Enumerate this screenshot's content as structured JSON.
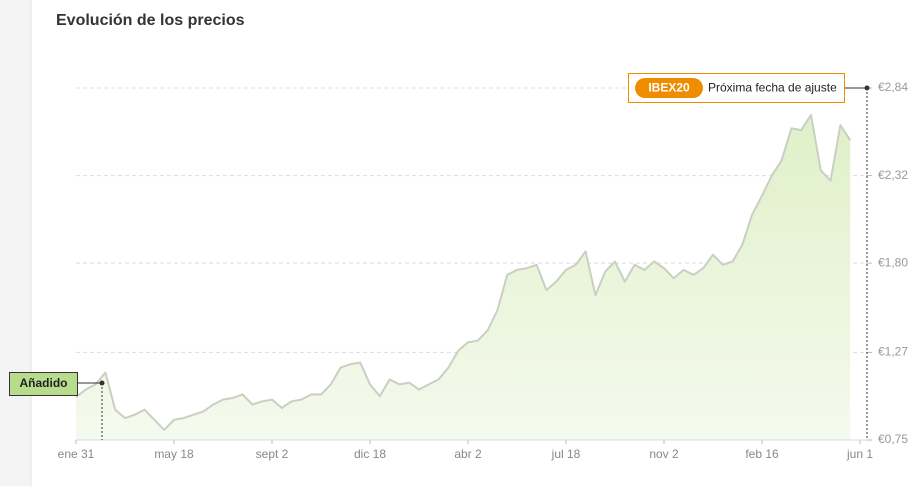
{
  "chart_data": {
    "type": "line",
    "title": "Evolución de los precios",
    "categories": [
      "ene 31",
      null,
      null,
      null,
      null,
      null,
      null,
      null,
      null,
      null,
      "may 18",
      null,
      null,
      null,
      null,
      null,
      null,
      null,
      null,
      null,
      "sept 2",
      null,
      null,
      null,
      null,
      null,
      null,
      null,
      null,
      null,
      "dic 18",
      null,
      null,
      null,
      null,
      null,
      null,
      null,
      null,
      null,
      "abr 2",
      null,
      null,
      null,
      null,
      null,
      null,
      null,
      null,
      null,
      "jul 18",
      null,
      null,
      null,
      null,
      null,
      null,
      null,
      null,
      null,
      "nov 2",
      null,
      null,
      null,
      null,
      null,
      null,
      null,
      null,
      null,
      "feb 16",
      null,
      null,
      null,
      null,
      null,
      null,
      null,
      null,
      null,
      "jun 1"
    ],
    "series": [
      {
        "name": "IBEX20",
        "color": "#c9cfc2",
        "values": [
          1.005,
          1.05,
          1.08,
          1.15,
          0.93,
          0.88,
          0.9,
          0.93,
          0.87,
          0.81,
          0.87,
          0.88,
          0.9,
          0.92,
          0.96,
          0.99,
          1.0,
          1.02,
          0.96,
          0.98,
          0.99,
          0.94,
          0.98,
          0.99,
          1.02,
          1.02,
          1.08,
          1.18,
          1.2,
          1.21,
          1.08,
          1.01,
          1.11,
          1.08,
          1.09,
          1.05,
          1.08,
          1.11,
          1.18,
          1.28,
          1.33,
          1.34,
          1.4,
          1.52,
          1.73,
          1.76,
          1.77,
          1.79,
          1.64,
          1.69,
          1.76,
          1.79,
          1.87,
          1.61,
          1.75,
          1.81,
          1.69,
          1.79,
          1.76,
          1.81,
          1.77,
          1.71,
          1.76,
          1.73,
          1.77,
          1.85,
          1.79,
          1.81,
          1.91,
          2.09,
          2.2,
          2.32,
          2.41,
          2.6,
          2.59,
          2.68,
          2.35,
          2.29,
          2.62,
          2.53,
          null
        ]
      }
    ],
    "ylim": [
      0.75,
      2.84
    ],
    "yticks": [
      {
        "value": 0.75,
        "label": "€0,75"
      },
      {
        "value": 1.27,
        "label": "€1,27"
      },
      {
        "value": 1.8,
        "label": "€1,80"
      },
      {
        "value": 2.32,
        "label": "€2,32"
      },
      {
        "value": 2.84,
        "label": "€2,84"
      }
    ],
    "grid": true,
    "annotations": {
      "added": "Añadido",
      "badge": "IBEX20",
      "next_adjustment": "Próxima fecha de ajuste"
    }
  }
}
